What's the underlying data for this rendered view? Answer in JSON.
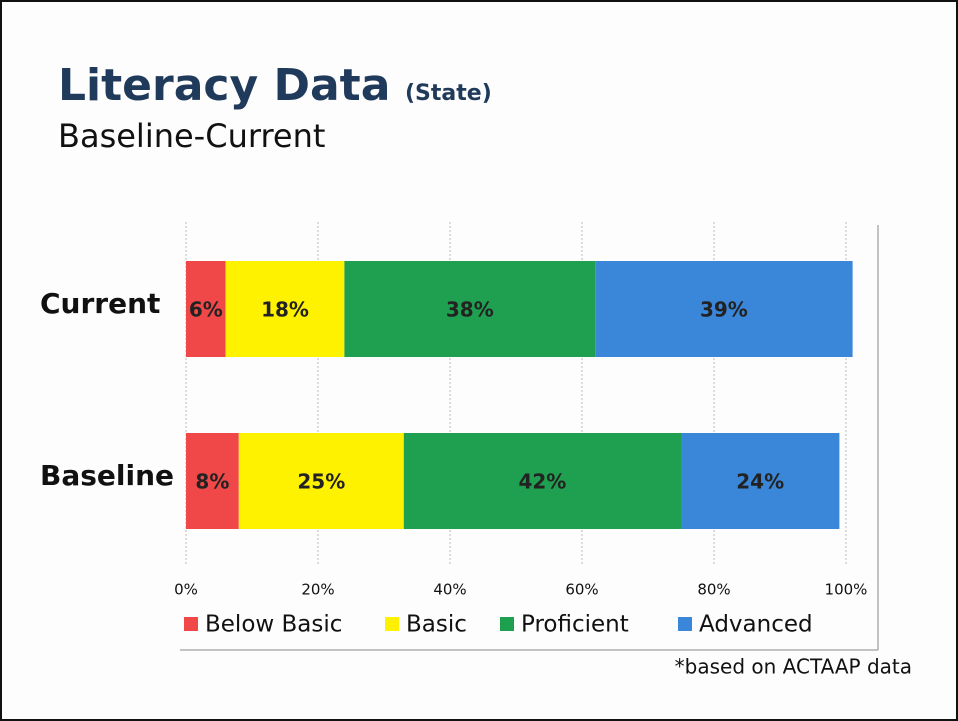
{
  "chart_data": {
    "type": "stacked-barh",
    "title": "Literacy Data",
    "title_note": "(State)",
    "subtitle": "Baseline-Current",
    "annotation": "*based on ACTAAP data",
    "categories": [
      "Current",
      "Baseline"
    ],
    "series": [
      {
        "name": "Below Basic",
        "color": "#f04848",
        "values": [
          6,
          8
        ],
        "value_labels": [
          "6%",
          "8%"
        ]
      },
      {
        "name": "Basic",
        "color": "#fff200",
        "values": [
          18,
          25
        ],
        "value_labels": [
          "18%",
          "25%"
        ]
      },
      {
        "name": "Proficient",
        "color": "#1f9f50",
        "values": [
          38,
          42
        ],
        "value_labels": [
          "38%",
          "42%"
        ]
      },
      {
        "name": "Advanced",
        "color": "#3a86d8",
        "values": [
          39,
          24
        ],
        "value_labels": [
          "39%",
          "24%"
        ]
      }
    ],
    "xlim": [
      0,
      100
    ],
    "xticks": [
      {
        "value": 0,
        "label": "0%"
      },
      {
        "value": 20,
        "label": "20%"
      },
      {
        "value": 40,
        "label": "40%"
      },
      {
        "value": 60,
        "label": "60%"
      },
      {
        "value": 80,
        "label": "80%"
      },
      {
        "value": 100,
        "label": "100%"
      }
    ],
    "grid": true,
    "legend": "bottom"
  }
}
